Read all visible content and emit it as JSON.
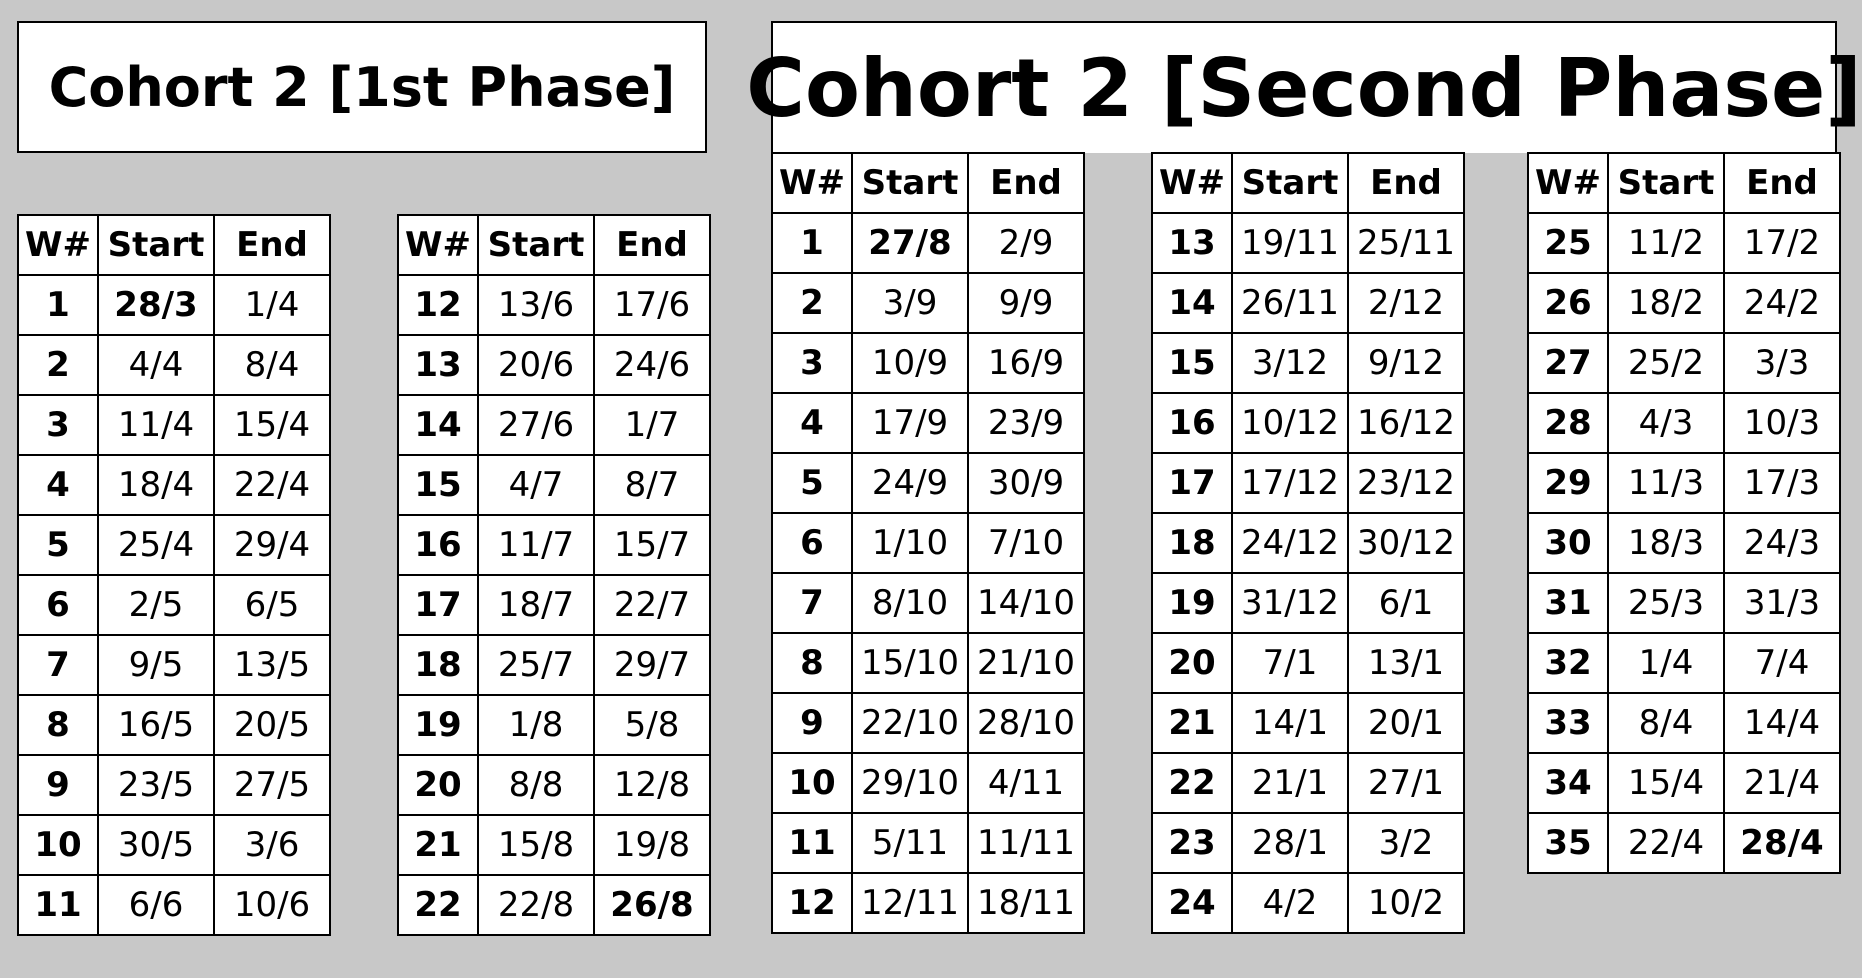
{
  "titles": {
    "phase1": "Cohort 2 [1st Phase]",
    "phase2": "Cohort 2 [Second Phase]"
  },
  "headers": [
    "W#",
    "Start",
    "End"
  ],
  "tables": [
    {
      "rows": [
        {
          "w": "1",
          "start": "28/3",
          "end": "1/4",
          "bold": "start"
        },
        {
          "w": "2",
          "start": "4/4",
          "end": "8/4"
        },
        {
          "w": "3",
          "start": "11/4",
          "end": "15/4"
        },
        {
          "w": "4",
          "start": "18/4",
          "end": "22/4"
        },
        {
          "w": "5",
          "start": "25/4",
          "end": "29/4"
        },
        {
          "w": "6",
          "start": "2/5",
          "end": "6/5"
        },
        {
          "w": "7",
          "start": "9/5",
          "end": "13/5"
        },
        {
          "w": "8",
          "start": "16/5",
          "end": "20/5"
        },
        {
          "w": "9",
          "start": "23/5",
          "end": "27/5"
        },
        {
          "w": "10",
          "start": "30/5",
          "end": "3/6"
        },
        {
          "w": "11",
          "start": "6/6",
          "end": "10/6"
        }
      ]
    },
    {
      "rows": [
        {
          "w": "12",
          "start": "13/6",
          "end": "17/6"
        },
        {
          "w": "13",
          "start": "20/6",
          "end": "24/6"
        },
        {
          "w": "14",
          "start": "27/6",
          "end": "1/7"
        },
        {
          "w": "15",
          "start": "4/7",
          "end": "8/7"
        },
        {
          "w": "16",
          "start": "11/7",
          "end": "15/7"
        },
        {
          "w": "17",
          "start": "18/7",
          "end": "22/7"
        },
        {
          "w": "18",
          "start": "25/7",
          "end": "29/7"
        },
        {
          "w": "19",
          "start": "1/8",
          "end": "5/8"
        },
        {
          "w": "20",
          "start": "8/8",
          "end": "12/8"
        },
        {
          "w": "21",
          "start": "15/8",
          "end": "19/8"
        },
        {
          "w": "22",
          "start": "22/8",
          "end": "26/8",
          "bold": "end"
        }
      ]
    },
    {
      "rows": [
        {
          "w": "1",
          "start": "27/8",
          "end": "2/9",
          "bold": "start"
        },
        {
          "w": "2",
          "start": "3/9",
          "end": "9/9"
        },
        {
          "w": "3",
          "start": "10/9",
          "end": "16/9"
        },
        {
          "w": "4",
          "start": "17/9",
          "end": "23/9"
        },
        {
          "w": "5",
          "start": "24/9",
          "end": "30/9"
        },
        {
          "w": "6",
          "start": "1/10",
          "end": "7/10"
        },
        {
          "w": "7",
          "start": "8/10",
          "end": "14/10"
        },
        {
          "w": "8",
          "start": "15/10",
          "end": "21/10"
        },
        {
          "w": "9",
          "start": "22/10",
          "end": "28/10"
        },
        {
          "w": "10",
          "start": "29/10",
          "end": "4/11"
        },
        {
          "w": "11",
          "start": "5/11",
          "end": "11/11"
        },
        {
          "w": "12",
          "start": "12/11",
          "end": "18/11"
        }
      ]
    },
    {
      "rows": [
        {
          "w": "13",
          "start": "19/11",
          "end": "25/11"
        },
        {
          "w": "14",
          "start": "26/11",
          "end": "2/12"
        },
        {
          "w": "15",
          "start": "3/12",
          "end": "9/12"
        },
        {
          "w": "16",
          "start": "10/12",
          "end": "16/12"
        },
        {
          "w": "17",
          "start": "17/12",
          "end": "23/12"
        },
        {
          "w": "18",
          "start": "24/12",
          "end": "30/12"
        },
        {
          "w": "19",
          "start": "31/12",
          "end": "6/1"
        },
        {
          "w": "20",
          "start": "7/1",
          "end": "13/1"
        },
        {
          "w": "21",
          "start": "14/1",
          "end": "20/1"
        },
        {
          "w": "22",
          "start": "21/1",
          "end": "27/1"
        },
        {
          "w": "23",
          "start": "28/1",
          "end": "3/2"
        },
        {
          "w": "24",
          "start": "4/2",
          "end": "10/2"
        }
      ]
    },
    {
      "rows": [
        {
          "w": "25",
          "start": "11/2",
          "end": "17/2"
        },
        {
          "w": "26",
          "start": "18/2",
          "end": "24/2"
        },
        {
          "w": "27",
          "start": "25/2",
          "end": "3/3"
        },
        {
          "w": "28",
          "start": "4/3",
          "end": "10/3"
        },
        {
          "w": "29",
          "start": "11/3",
          "end": "17/3"
        },
        {
          "w": "30",
          "start": "18/3",
          "end": "24/3"
        },
        {
          "w": "31",
          "start": "25/3",
          "end": "31/3"
        },
        {
          "w": "32",
          "start": "1/4",
          "end": "7/4"
        },
        {
          "w": "33",
          "start": "8/4",
          "end": "14/4"
        },
        {
          "w": "34",
          "start": "15/4",
          "end": "21/4"
        },
        {
          "w": "35",
          "start": "22/4",
          "end": "28/4",
          "bold": "end"
        }
      ]
    }
  ]
}
